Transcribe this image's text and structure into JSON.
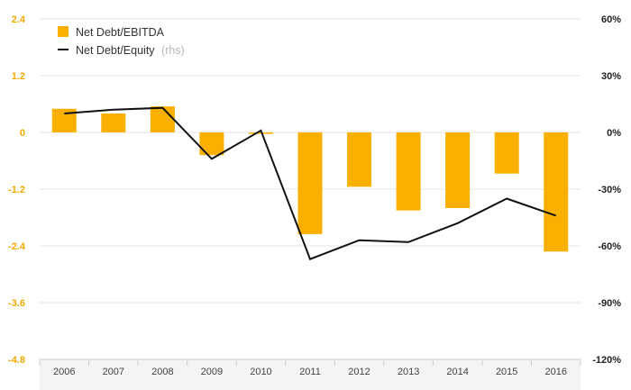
{
  "chart_data": {
    "type": "bar+line",
    "categories": [
      "2006",
      "2007",
      "2008",
      "2009",
      "2010",
      "2011",
      "2012",
      "2013",
      "2014",
      "2015",
      "2016"
    ],
    "series": [
      {
        "name": "Net Debt/EBITDA",
        "type": "bar",
        "axis": "left",
        "color": "#f9b000",
        "values": [
          0.5,
          0.4,
          0.55,
          -0.48,
          -0.03,
          -2.15,
          -1.15,
          -1.65,
          -1.6,
          -0.87,
          -2.52
        ]
      },
      {
        "name": "Net Debt/Equity",
        "name_suffix": "(rhs)",
        "type": "line",
        "axis": "right",
        "color": "#111111",
        "values": [
          10,
          12,
          13,
          -14,
          1,
          -67,
          -57,
          -58,
          -48,
          -35,
          -44
        ]
      }
    ],
    "y_left": {
      "ylim": [
        -4.8,
        2.4
      ],
      "ticks": [
        2.4,
        1.2,
        0,
        -1.2,
        -2.4,
        -3.6,
        -4.8
      ],
      "tick_labels": [
        "2.4",
        "1.2",
        "0",
        "-1.2",
        "-2.4",
        "-3.6",
        "-4.8"
      ],
      "color": "#f2a900"
    },
    "y_right": {
      "ylim": [
        -120,
        60
      ],
      "ticks": [
        60,
        30,
        0,
        -30,
        -60,
        -90,
        -120
      ],
      "tick_labels": [
        "60%",
        "30%",
        "0%",
        "-30%",
        "-60%",
        "-90%",
        "-120%"
      ],
      "color": "#222222"
    },
    "grid": true,
    "legend": "top-left"
  }
}
